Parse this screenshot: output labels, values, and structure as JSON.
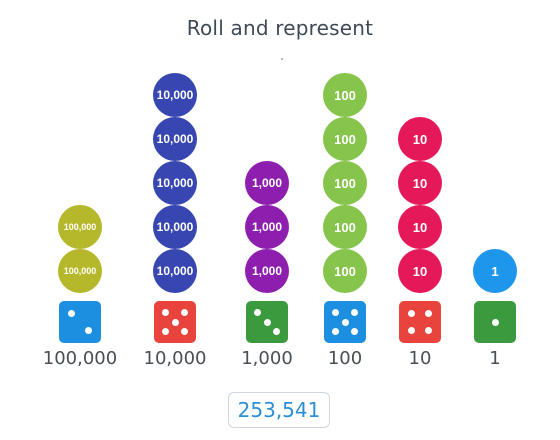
{
  "title": "Roll and represent",
  "total": "253,541",
  "columns": [
    {
      "place": "100,000",
      "counter_label": "100,000",
      "count": 2,
      "die_value": 2,
      "counter_color": "#b5b82a",
      "die_color": "#1d8fe0"
    },
    {
      "place": "10,000",
      "counter_label": "10,000",
      "count": 5,
      "die_value": 5,
      "counter_color": "#3746b0",
      "die_color": "#e8433d"
    },
    {
      "place": "1,000",
      "counter_label": "1,000",
      "count": 3,
      "die_value": 3,
      "counter_color": "#8e1fae",
      "die_color": "#3c9a3e"
    },
    {
      "place": "100",
      "counter_label": "100",
      "count": 5,
      "die_value": 5,
      "counter_color": "#86c44b",
      "die_color": "#1d8fe0"
    },
    {
      "place": "10",
      "counter_label": "10",
      "count": 4,
      "die_value": 4,
      "counter_color": "#e5195a",
      "die_color": "#e8433d"
    },
    {
      "place": "1",
      "counter_label": "1",
      "count": 1,
      "die_value": 1,
      "counter_color": "#1e96ec",
      "die_color": "#3c9a3e"
    }
  ]
}
